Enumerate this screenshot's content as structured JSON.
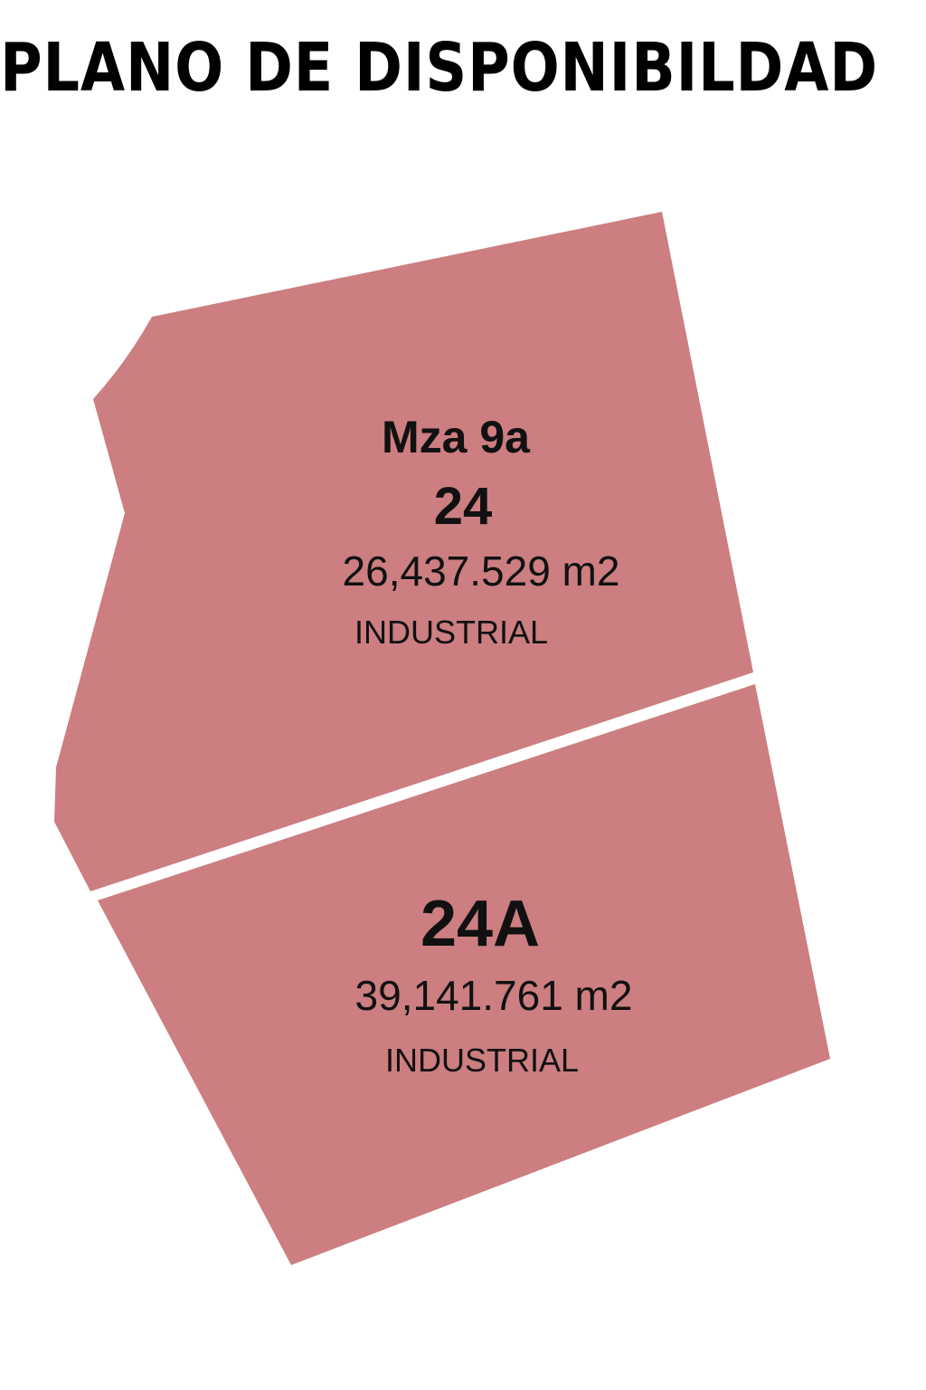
{
  "title": "PLANO DE DISPONIBILDAD",
  "colors": {
    "lot_fill": "#cc7e80",
    "background": "#ffffff",
    "text": "#111111"
  },
  "lots": [
    {
      "block": "Mza 9a",
      "number": "24",
      "area": "26,437.529 m2",
      "use": "INDUSTRIAL"
    },
    {
      "number": "24A",
      "area": "39,141.761 m2",
      "use": "INDUSTRIAL"
    }
  ]
}
